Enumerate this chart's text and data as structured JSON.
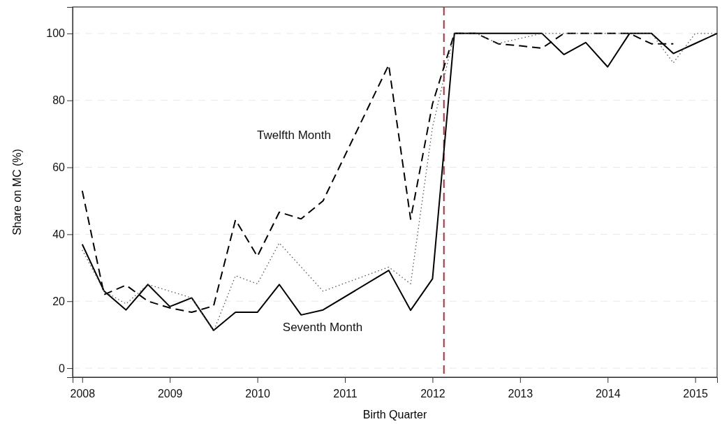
{
  "chart_data": {
    "type": "line",
    "xlabel": "Birth Quarter",
    "ylabel": "Share on MC (%)",
    "xlim": [
      2007.89,
      2015.25
    ],
    "ylim": [
      -2.7,
      107.9
    ],
    "xticks": [
      2008,
      2009,
      2010,
      2011,
      2012,
      2013,
      2014,
      2015
    ],
    "yticks": [
      0,
      20,
      40,
      60,
      80,
      100
    ],
    "grid": "y",
    "series": [
      {
        "color": "#000000",
        "line_style": "solid",
        "x": [
          2008,
          2008.25,
          2008.5,
          2008.75,
          2009,
          2009.25,
          2009.5,
          2009.75,
          2010,
          2010.25,
          2010.5,
          2010.75,
          2011.5,
          2011.75,
          2012,
          2012.25,
          2012.5,
          2012.75,
          2013,
          2013.25,
          2013.5,
          2013.75,
          2014,
          2014.25,
          2014.5,
          2014.75,
          2015,
          2015.25
        ],
        "values": [
          37,
          23,
          17.4,
          25,
          18.4,
          21,
          11.3,
          16.7,
          16.7,
          25,
          15.9,
          17.4,
          29.2,
          17.3,
          26.7,
          100,
          100,
          100,
          100,
          100,
          93.7,
          97.3,
          90,
          100,
          100,
          94,
          97,
          100
        ]
      },
      {
        "color": "#000000",
        "line_style": "dashed",
        "x": [
          2008,
          2008.25,
          2008.5,
          2008.75,
          2009,
          2009.25,
          2009.5,
          2009.75,
          2010,
          2010.25,
          2010.5,
          2010.75,
          2011.5,
          2011.75,
          2012,
          2012.25,
          2012.5,
          2012.75,
          2013,
          2013.25,
          2013.5,
          2013.75,
          2014,
          2014.25,
          2014.5,
          2014.75
        ],
        "values": [
          53,
          22,
          24.8,
          20,
          18,
          16.7,
          18.6,
          44.3,
          33.4,
          46.6,
          44.6,
          50,
          90.6,
          44.5,
          79,
          100,
          100,
          96.9,
          96.3,
          95.6,
          100,
          100,
          100,
          100,
          96.9,
          96.9
        ]
      },
      {
        "color": "#555555",
        "line_style": "dotted",
        "x": [
          2008,
          2008.25,
          2008.5,
          2008.75,
          2009,
          2009.25,
          2009.5,
          2009.75,
          2010,
          2010.25,
          2010.75,
          2011.5,
          2011.75,
          2012,
          2012.25,
          2012.5,
          2012.75,
          2013,
          2013.25,
          2013.5,
          2013.75,
          2014,
          2014.25,
          2014.5,
          2014.75,
          2015,
          2015.25
        ],
        "values": [
          35.3,
          23,
          19.2,
          25,
          23,
          21,
          11,
          27.6,
          25.2,
          37.4,
          23,
          30.2,
          25.2,
          72,
          100,
          100,
          97,
          98.5,
          100,
          100,
          100,
          100,
          100,
          100,
          91.2,
          100,
          100
        ]
      }
    ],
    "ref_lines": [
      {
        "axis": "x",
        "value": 2012.13,
        "color": "#a83240",
        "line_style": "dashed"
      }
    ],
    "annotations": [
      "Twelfth Month",
      "Seventh Month"
    ]
  }
}
